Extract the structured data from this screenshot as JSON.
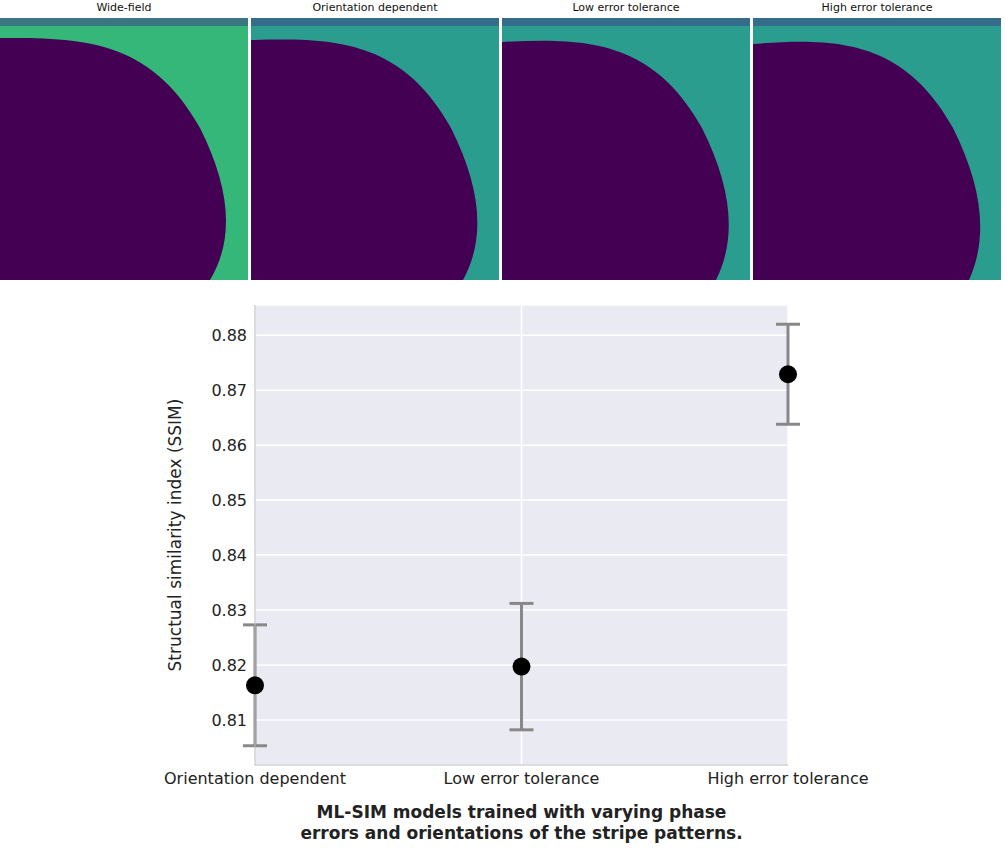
{
  "image_panels": {
    "titles": [
      "Wide-field",
      "Orientation dependent",
      "Low error tolerance",
      "High error tolerance"
    ]
  },
  "chart_data": {
    "type": "scatter",
    "categories": [
      "Orientation dependent",
      "Low error tolerance",
      "High error tolerance"
    ],
    "values": [
      0.8163,
      0.8197,
      0.8729
    ],
    "errors": [
      0.011,
      0.0115,
      0.0091
    ],
    "color": "#000000",
    "ylim": [
      0.8018,
      0.8855
    ],
    "yticks": [
      0.81,
      0.82,
      0.83,
      0.84,
      0.85,
      0.86,
      0.87,
      0.88
    ],
    "ylabel": "Structual similarity index (SSIM)",
    "xlabel": "ML-SIM models trained with varying phase errors and orientations of the stripe patterns.",
    "grid": true,
    "marker": "circle"
  }
}
